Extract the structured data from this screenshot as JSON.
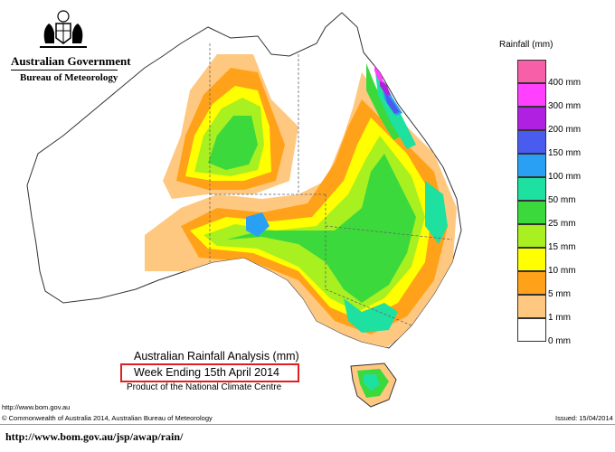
{
  "header": {
    "gov_name": "Australian Government",
    "bureau_name": "Bureau of Meteorology",
    "crest_icon": "coat-of-arms-icon"
  },
  "legend": {
    "title": "Rainfall (mm)",
    "items": [
      {
        "label": "",
        "color": "#f75fa8"
      },
      {
        "label": "400 mm",
        "color": "#ff40ff"
      },
      {
        "label": "300 mm",
        "color": "#b020e0"
      },
      {
        "label": "200 mm",
        "color": "#4a5cf0"
      },
      {
        "label": "150 mm",
        "color": "#2aa0f5"
      },
      {
        "label": "100 mm",
        "color": "#1ee0a0"
      },
      {
        "label": "50 mm",
        "color": "#3cd93c"
      },
      {
        "label": "25 mm",
        "color": "#a8f020"
      },
      {
        "label": "15 mm",
        "color": "#ffff00"
      },
      {
        "label": "10 mm",
        "color": "#ffa21a"
      },
      {
        "label": "5 mm",
        "color": "#ffc880"
      },
      {
        "label": "1 mm",
        "color": "#ffffff"
      },
      {
        "label": "0 mm",
        "color": ""
      }
    ]
  },
  "titles": {
    "line1": "Australian Rainfall Analysis (mm)",
    "line2": "Week Ending 15th April 2014",
    "line3": "Product of the National Climate Centre"
  },
  "footer": {
    "bom_url": "http://www.bom.gov.au",
    "copyright": "© Commonwealth of Australia 2014, Australian Bureau of Meteorology",
    "issued": "Issued: 15/04/2014",
    "link": "http://www.bom.gov.au/jsp/awap/rain/"
  },
  "map": {
    "highlight_color": "#e02020"
  }
}
